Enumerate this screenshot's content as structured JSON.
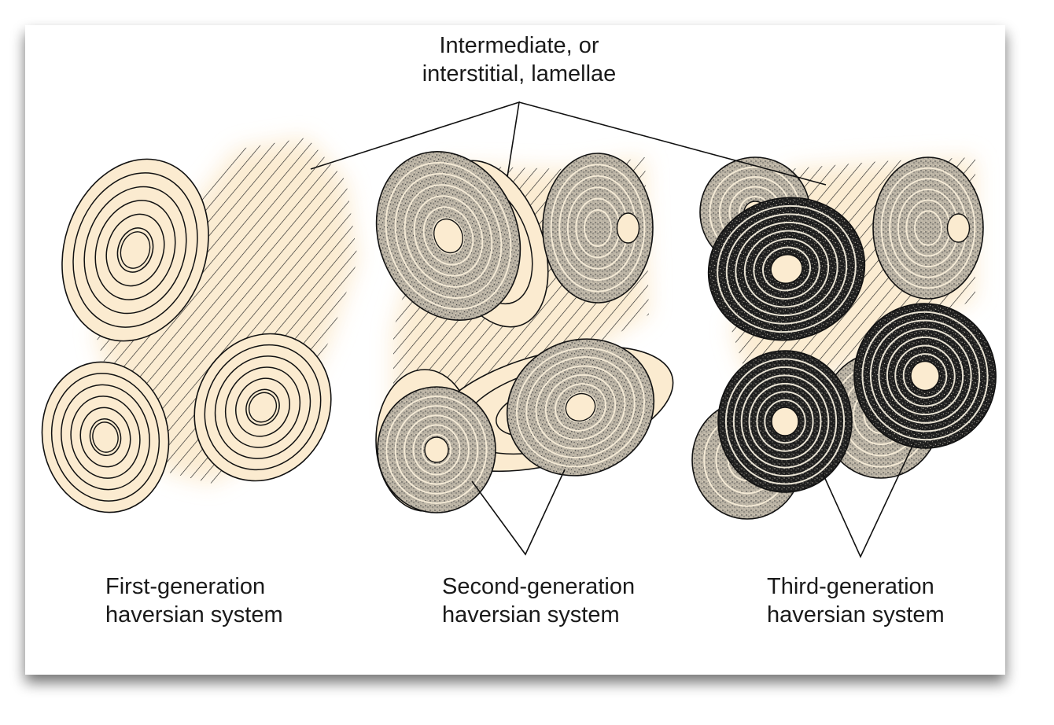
{
  "figure": {
    "labels": {
      "interstitial_line1": "Intermediate, or",
      "interstitial_line2": "interstitial, lamellae",
      "first_line1": "First-generation",
      "first_line2": "haversian system",
      "second_line1": "Second-generation",
      "second_line2": "haversian system",
      "third_line1": "Third-generation",
      "third_line2": "haversian system"
    },
    "colors": {
      "canal": "#fbebd0",
      "lamella_light": "#fbebd0",
      "lamella_medium": "#b8b1a3",
      "lamella_dark": "#1e1e1e",
      "ink": "#111111",
      "card_shadow": "#8a8a8a"
    }
  }
}
